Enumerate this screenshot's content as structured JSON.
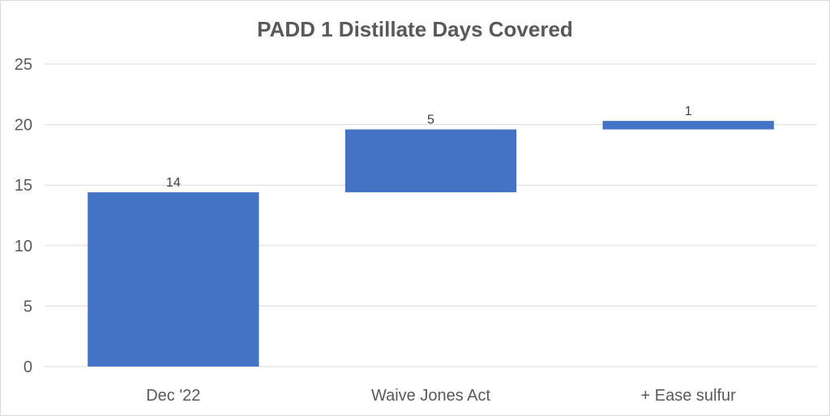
{
  "chart_data": {
    "type": "bar",
    "subtype": "waterfall",
    "title": "PADD 1 Distillate Days Covered",
    "categories": [
      "Dec '22",
      "Waive Jones Act",
      "+ Ease sulfur"
    ],
    "values": [
      14,
      5,
      1
    ],
    "bars": [
      {
        "category": "Dec '22",
        "start": 0,
        "end": 14.4,
        "label": "14"
      },
      {
        "category": "Waive Jones Act",
        "start": 14.4,
        "end": 19.6,
        "label": "5"
      },
      {
        "category": "+ Ease sulfur",
        "start": 19.6,
        "end": 20.3,
        "label": "1"
      }
    ],
    "ylim": [
      0,
      25
    ],
    "yticks": [
      "0",
      "5",
      "10",
      "15",
      "20",
      "25"
    ],
    "xlabel": "",
    "ylabel": "",
    "grid": true,
    "legend": "none",
    "bar_color": "#4472c4"
  }
}
